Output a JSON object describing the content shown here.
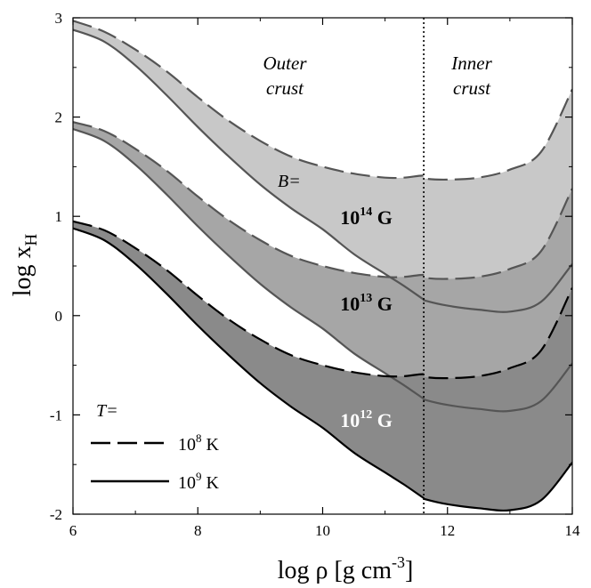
{
  "chart_data": {
    "type": "area",
    "xlabel": "log ρ [g cm",
    "xlabel_sup": "-3",
    "xlabel_end": "]",
    "ylabel": "log x",
    "ylabel_sub": "H",
    "xlim": [
      6,
      14
    ],
    "ylim": [
      -2,
      3
    ],
    "x_ticks": [
      6,
      8,
      10,
      12,
      14
    ],
    "x_tick_labels": [
      "6",
      "8",
      "10",
      "12",
      "14"
    ],
    "y_ticks": [
      -2,
      -1,
      0,
      1,
      2,
      3
    ],
    "y_tick_labels": [
      "-2",
      "-1",
      "0",
      "1",
      "2",
      "3"
    ],
    "divider_x": 11.62,
    "region_labels": {
      "outer": [
        "Outer",
        "crust"
      ],
      "inner": [
        "Inner",
        "crust"
      ]
    },
    "b_prefix": "B=",
    "field_unit": "G",
    "legend": {
      "title": "T=",
      "entries": [
        {
          "base": "10",
          "exp": "8",
          "unit": "K",
          "style": "dashed"
        },
        {
          "base": "10",
          "exp": "9",
          "unit": "K",
          "style": "solid"
        }
      ]
    },
    "series": [
      {
        "label_base": "10",
        "label_exp": "14",
        "fill": "#c8c8c8",
        "line_color": "#555555",
        "text_color": "#000000",
        "label_pos": [
          10.7,
          0.92
        ],
        "T8": [
          [
            6,
            2.97
          ],
          [
            6.5,
            2.86
          ],
          [
            7,
            2.68
          ],
          [
            7.5,
            2.46
          ],
          [
            8,
            2.2
          ],
          [
            8.5,
            1.96
          ],
          [
            9,
            1.76
          ],
          [
            9.5,
            1.6
          ],
          [
            10,
            1.5
          ],
          [
            10.5,
            1.43
          ],
          [
            11,
            1.39
          ],
          [
            11.3,
            1.39
          ],
          [
            11.6,
            1.41
          ],
          [
            11.65,
            1.38
          ],
          [
            12,
            1.37
          ],
          [
            12.5,
            1.39
          ],
          [
            13,
            1.47
          ],
          [
            13.5,
            1.65
          ],
          [
            14,
            2.28
          ]
        ],
        "T9": [
          [
            6,
            2.88
          ],
          [
            6.5,
            2.76
          ],
          [
            7,
            2.52
          ],
          [
            7.5,
            2.22
          ],
          [
            8,
            1.9
          ],
          [
            8.5,
            1.6
          ],
          [
            9,
            1.32
          ],
          [
            9.5,
            1.08
          ],
          [
            10,
            0.87
          ],
          [
            10.5,
            0.62
          ],
          [
            11,
            0.42
          ],
          [
            11.3,
            0.3
          ],
          [
            11.6,
            0.17
          ],
          [
            11.65,
            0.15
          ],
          [
            12,
            0.1
          ],
          [
            12.5,
            0.06
          ],
          [
            13,
            0.04
          ],
          [
            13.5,
            0.14
          ],
          [
            14,
            0.52
          ]
        ]
      },
      {
        "label_base": "10",
        "label_exp": "13",
        "fill": "#a6a6a6",
        "line_color": "#555555",
        "text_color": "#000000",
        "label_pos": [
          10.7,
          0.05
        ],
        "T8": [
          [
            6,
            1.95
          ],
          [
            6.5,
            1.86
          ],
          [
            7,
            1.68
          ],
          [
            7.5,
            1.46
          ],
          [
            8,
            1.2
          ],
          [
            8.5,
            0.96
          ],
          [
            9,
            0.76
          ],
          [
            9.5,
            0.6
          ],
          [
            10,
            0.5
          ],
          [
            10.5,
            0.43
          ],
          [
            11,
            0.39
          ],
          [
            11.3,
            0.39
          ],
          [
            11.6,
            0.41
          ],
          [
            11.65,
            0.38
          ],
          [
            12,
            0.37
          ],
          [
            12.5,
            0.39
          ],
          [
            13,
            0.47
          ],
          [
            13.5,
            0.65
          ],
          [
            14,
            1.28
          ]
        ],
        "T9": [
          [
            6,
            1.88
          ],
          [
            6.5,
            1.76
          ],
          [
            7,
            1.52
          ],
          [
            7.5,
            1.22
          ],
          [
            8,
            0.9
          ],
          [
            8.5,
            0.6
          ],
          [
            9,
            0.32
          ],
          [
            9.5,
            0.08
          ],
          [
            10,
            -0.13
          ],
          [
            10.5,
            -0.38
          ],
          [
            11,
            -0.58
          ],
          [
            11.3,
            -0.7
          ],
          [
            11.6,
            -0.83
          ],
          [
            11.65,
            -0.85
          ],
          [
            12,
            -0.9
          ],
          [
            12.5,
            -0.94
          ],
          [
            13,
            -0.96
          ],
          [
            13.5,
            -0.86
          ],
          [
            14,
            -0.48
          ]
        ]
      },
      {
        "label_base": "10",
        "label_exp": "12",
        "fill": "#8a8a8a",
        "line_color": "#000000",
        "text_color": "#ffffff",
        "label_pos": [
          10.7,
          -1.12
        ],
        "T8": [
          [
            6,
            0.95
          ],
          [
            6.5,
            0.86
          ],
          [
            7,
            0.68
          ],
          [
            7.5,
            0.46
          ],
          [
            8,
            0.2
          ],
          [
            8.5,
            -0.04
          ],
          [
            9,
            -0.24
          ],
          [
            9.5,
            -0.4
          ],
          [
            10,
            -0.5
          ],
          [
            10.5,
            -0.57
          ],
          [
            11,
            -0.61
          ],
          [
            11.3,
            -0.61
          ],
          [
            11.6,
            -0.59
          ],
          [
            11.65,
            -0.62
          ],
          [
            12,
            -0.63
          ],
          [
            12.5,
            -0.61
          ],
          [
            13,
            -0.53
          ],
          [
            13.5,
            -0.35
          ],
          [
            14,
            0.28
          ]
        ],
        "T9": [
          [
            6,
            0.88
          ],
          [
            6.5,
            0.76
          ],
          [
            7,
            0.52
          ],
          [
            7.5,
            0.22
          ],
          [
            8,
            -0.1
          ],
          [
            8.5,
            -0.4
          ],
          [
            9,
            -0.68
          ],
          [
            9.5,
            -0.92
          ],
          [
            10,
            -1.13
          ],
          [
            10.5,
            -1.38
          ],
          [
            11,
            -1.58
          ],
          [
            11.3,
            -1.7
          ],
          [
            11.6,
            -1.83
          ],
          [
            11.65,
            -1.85
          ],
          [
            12,
            -1.9
          ],
          [
            12.5,
            -1.94
          ],
          [
            13,
            -1.96
          ],
          [
            13.5,
            -1.86
          ],
          [
            14,
            -1.48
          ]
        ]
      }
    ]
  }
}
